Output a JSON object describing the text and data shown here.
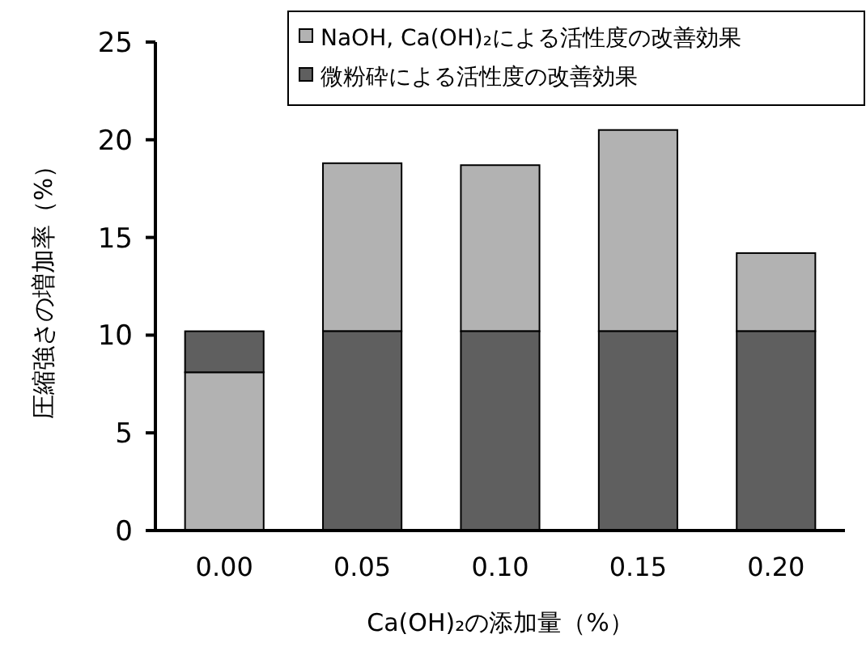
{
  "chart_data": {
    "type": "bar",
    "xlabel": "Ca(OH)₂の添加量（%）",
    "ylabel": "圧縮強さの増加率（%）",
    "categories": [
      "0.00",
      "0.05",
      "0.10",
      "0.15",
      "0.20"
    ],
    "series": [
      {
        "name": "NaOH, Ca(OH)₂による活性度の改善効果",
        "color": "#b2b2b2",
        "values": [
          8.1,
          8.6,
          8.5,
          10.3,
          4.0
        ],
        "base": [
          0,
          10.2,
          10.2,
          10.2,
          10.2
        ]
      },
      {
        "name": "微粉砕による活性度の改善効果",
        "color": "#5f5f5f",
        "values": [
          2.1,
          10.2,
          10.2,
          10.2,
          10.2
        ],
        "base": [
          8.1,
          0,
          0,
          0,
          0
        ]
      }
    ],
    "ylim": [
      0,
      25
    ],
    "yticks": [
      0,
      5,
      10,
      15,
      20,
      25
    ],
    "legend": "top right"
  }
}
